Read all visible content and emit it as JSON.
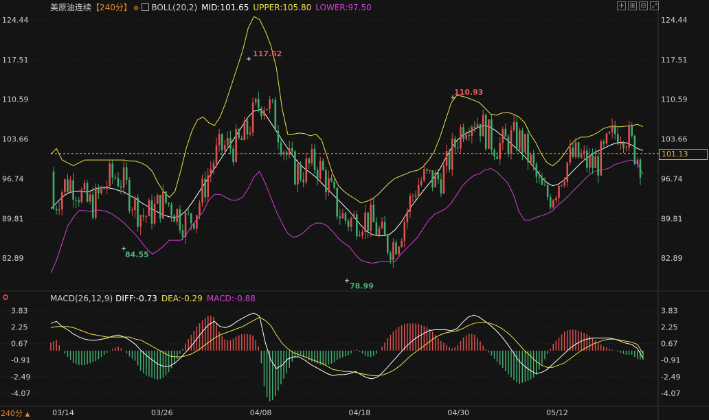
{
  "header": {
    "instrument": "美原油连续",
    "period": "【240分】",
    "boll_label": "BOLL(20,2)",
    "mid": "MID:101.65",
    "upper": "UPPER:105.80",
    "lower": "LOWER:97.50"
  },
  "macd_header": {
    "label": "MACD(26,12,9)",
    "diff": "DIFF:-0.73",
    "dea": "DEA:-0.29",
    "macd": "MACD:-0.88"
  },
  "colors": {
    "background": "#141414",
    "up": "#e0504f",
    "down": "#3fae6e",
    "mid": "#ffffff",
    "upper": "#f0e24a",
    "lower": "#d341d3",
    "last_price_line": "#d9a441",
    "axis_text": "#cfcfcf",
    "high_label": "#e05a5a",
    "low_label": "#4fb07a"
  },
  "last_price": "101.13",
  "period_selector": "240分",
  "toolbar_icons": [
    "crosshair-icon",
    "zoom-in-icon",
    "zoom-out-icon",
    "restore-icon"
  ],
  "chart_data": [
    {
      "type": "candlestick",
      "x_ticks": [
        "03/14",
        "03/26",
        "04/08",
        "04/18",
        "04/30",
        "05/12"
      ],
      "y_ticks": [
        "124.44",
        "117.51",
        "110.59",
        "103.66",
        "96.74",
        "89.81",
        "82.89"
      ],
      "ylim": [
        78.6,
        125.5
      ],
      "series": [
        {
          "name": "MID",
          "values": [
            91.5,
            92.5,
            93.5,
            94.2,
            94.5,
            94.6,
            94.4,
            94.6,
            95.0,
            95.2,
            95.2,
            95.0,
            94.7,
            94.4,
            93.8,
            93.3,
            92.6,
            92.0,
            91.4,
            90.9,
            90.4,
            90.1,
            90.0,
            90.3,
            91.2,
            92.5,
            94.0,
            95.5,
            97.0,
            98.5,
            100.0,
            101.5,
            103.0,
            104.5,
            106.0,
            107.5,
            108.5,
            108.8,
            108.0,
            106.5,
            105.0,
            103.5,
            102.0,
            100.6,
            99.4,
            98.5,
            97.8,
            97.0,
            96.0,
            95.0,
            94.0,
            93.0,
            92.0,
            91.0,
            89.8,
            88.6,
            87.6,
            87.0,
            86.8,
            86.8,
            87.0,
            87.8,
            89.0,
            90.5,
            92.0,
            93.3,
            94.6,
            95.8,
            97.0,
            98.5,
            100.3,
            102.0,
            103.4,
            104.3,
            104.8,
            105.3,
            105.8,
            106.0,
            105.7,
            105.0,
            104.2,
            103.4,
            102.5,
            101.6,
            100.6,
            99.5,
            98.3,
            97.0,
            96.0,
            95.5,
            95.8,
            96.5,
            97.5,
            98.5,
            99.5,
            100.3,
            101.0,
            101.6,
            102.0,
            102.5,
            102.9,
            103.1,
            103.0,
            102.6,
            102.0,
            101.65
          ]
        },
        {
          "name": "UPPER",
          "values": [
            101,
            102,
            100,
            99.5,
            99,
            99.5,
            100,
            100,
            100,
            100,
            100,
            100,
            100,
            100,
            99.8,
            99.8,
            99.5,
            99.0,
            98.0,
            96.0,
            94.5,
            93.5,
            94.5,
            98,
            102,
            105,
            107,
            107.5,
            106.5,
            106,
            107.5,
            110,
            113,
            116,
            119,
            123,
            125,
            124.5,
            122.5,
            120,
            116,
            109,
            104.5,
            104.5,
            104.7,
            104.6,
            104.2,
            104.5,
            103.5,
            100.5,
            97.5,
            95.5,
            94.5,
            93.8,
            93.2,
            92.5,
            92.8,
            93.2,
            94.0,
            95.0,
            96.0,
            96.8,
            97.2,
            97.6,
            98.0,
            98.2,
            98.8,
            100.0,
            101.5,
            104.0,
            107.0,
            110.0,
            111.3,
            111.1,
            110.8,
            110.4,
            110.0,
            109.0,
            108.0,
            107.8,
            108.2,
            108.3,
            108.0,
            107.5,
            106.5,
            104.5,
            103.0,
            101.0,
            99.5,
            99.0,
            99.8,
            101.0,
            102.5,
            103.5,
            104.0,
            104.0,
            104.3,
            104.8,
            105.5,
            105.8,
            105.8,
            105.8,
            105.9,
            106.0,
            106.2,
            105.8
          ]
        },
        {
          "name": "LOWER",
          "values": [
            80.3,
            82.5,
            85.5,
            88.5,
            90.0,
            91.2,
            91.2,
            91.0,
            91.3,
            91.2,
            91.0,
            90.5,
            89.8,
            89.0,
            88.0,
            87.0,
            85.8,
            84.5,
            83.6,
            84.2,
            85.0,
            86.0,
            86.0,
            86.0,
            87.0,
            88.5,
            89.8,
            91.0,
            93.0,
            94.0,
            94.0,
            93.5,
            93.0,
            93.0,
            93.5,
            95.0,
            97.0,
            98.0,
            96.0,
            93.5,
            91.0,
            89.0,
            87.2,
            86.5,
            86.8,
            87.5,
            88.5,
            89.0,
            89.0,
            88.5,
            87.5,
            86.3,
            85.5,
            84.8,
            83.5,
            82.5,
            82.2,
            82.0,
            82.2,
            82.3,
            82.3,
            82.3,
            83.5,
            84.5,
            85.5,
            86.5,
            88.0,
            89.5,
            90.5,
            91.0,
            91.5,
            92.5,
            94.0,
            95.5,
            96.5,
            97.3,
            97.6,
            98.3,
            98.5,
            98.0,
            97.0,
            96.0,
            94.0,
            91.0,
            89.5,
            89.5,
            90.0,
            90.3,
            90.6,
            91.2,
            92.2,
            93.0,
            94.0,
            95.0,
            96.0,
            97.0,
            97.8,
            98.2,
            98.3,
            98.6,
            99.2,
            99.5,
            99.8,
            100.0,
            99.5,
            97.5
          ]
        }
      ],
      "annotations": [
        {
          "text": "117.62",
          "type": "high"
        },
        {
          "text": "84.55",
          "type": "low"
        },
        {
          "text": "78.99",
          "type": "low"
        },
        {
          "text": "110.93",
          "type": "high"
        }
      ]
    },
    {
      "type": "bar",
      "title": "MACD(26,12,9)",
      "y_ticks": [
        "3.83",
        "2.25",
        "0.67",
        "-0.91",
        "-2.49",
        "-4.07"
      ],
      "ylim": [
        -5.2,
        4.2
      ],
      "series": [
        {
          "name": "DIFF",
          "values": [
            2.6,
            2.8,
            2.3,
            2.0,
            1.6,
            1.3,
            1.1,
            1.0,
            1.0,
            1.1,
            1.2,
            1.4,
            1.5,
            1.3,
            1.0,
            0.6,
            0.0,
            -0.5,
            -0.9,
            -1.3,
            -1.5,
            -1.5,
            -1.2,
            -0.7,
            -0.1,
            0.5,
            1.2,
            1.9,
            2.5,
            2.8,
            2.3,
            2.2,
            2.4,
            2.8,
            3.1,
            3.4,
            3.6,
            3.3,
            0.8,
            -0.9,
            -1.7,
            -1.4,
            -0.8,
            -0.6,
            -0.6,
            -0.9,
            -1.3,
            -1.6,
            -1.9,
            -2.2,
            -2.4,
            -2.3,
            -2.3,
            -2.2,
            -2.0,
            -2.3,
            -2.6,
            -2.7,
            -2.5,
            -2.0,
            -1.4,
            -0.8,
            -0.2,
            0.4,
            0.9,
            1.3,
            1.6,
            1.9,
            2.0,
            2.0,
            2.0,
            1.9,
            2.1,
            2.7,
            3.2,
            3.4,
            3.2,
            2.8,
            2.4,
            1.9,
            1.3,
            0.6,
            -0.2,
            -1.0,
            -1.5,
            -1.9,
            -2.2,
            -2.1,
            -1.8,
            -1.3,
            -0.8,
            -0.3,
            0.2,
            0.6,
            0.9,
            1.1,
            1.2,
            1.2,
            1.2,
            1.2,
            1.1,
            0.9,
            0.7,
            0.6,
            0.2,
            -0.73
          ]
        },
        {
          "name": "DEA",
          "values": [
            2.2,
            2.3,
            2.3,
            2.3,
            2.2,
            2.0,
            1.8,
            1.6,
            1.5,
            1.4,
            1.3,
            1.3,
            1.3,
            1.3,
            1.3,
            1.1,
            1.0,
            0.7,
            0.4,
            0.1,
            -0.2,
            -0.5,
            -0.6,
            -0.6,
            -0.5,
            -0.3,
            0.0,
            0.4,
            0.8,
            1.2,
            1.5,
            1.7,
            1.9,
            2.1,
            2.3,
            2.6,
            2.9,
            3.2,
            2.9,
            2.4,
            1.5,
            0.7,
            0.2,
            -0.2,
            -0.4,
            -0.6,
            -0.8,
            -1.0,
            -1.2,
            -1.5,
            -1.8,
            -1.9,
            -2.0,
            -2.0,
            -2.1,
            -2.2,
            -2.3,
            -2.4,
            -2.4,
            -2.3,
            -2.1,
            -1.8,
            -1.4,
            -0.9,
            -0.4,
            0.0,
            0.4,
            0.8,
            1.2,
            1.5,
            1.7,
            1.8,
            1.9,
            2.1,
            2.4,
            2.6,
            2.7,
            2.7,
            2.6,
            2.4,
            2.1,
            1.7,
            1.2,
            0.6,
            0.0,
            -0.5,
            -1.0,
            -1.4,
            -1.6,
            -1.6,
            -1.4,
            -1.2,
            -0.8,
            -0.4,
            0.0,
            0.3,
            0.6,
            0.8,
            1.0,
            1.1,
            1.1,
            1.0,
            0.9,
            0.8,
            0.6,
            -0.29
          ]
        },
        {
          "name": "MACD",
          "values": [
            0.8,
            1.0,
            0.0,
            -0.6,
            -1.2,
            -1.4,
            -1.4,
            -1.2,
            -1.0,
            -0.6,
            -0.2,
            0.2,
            0.4,
            0.0,
            -0.6,
            -1.0,
            -2.0,
            -2.4,
            -2.6,
            -2.8,
            -2.6,
            -2.0,
            -1.2,
            -0.2,
            0.8,
            1.6,
            2.4,
            3.0,
            3.4,
            3.2,
            1.6,
            1.0,
            1.0,
            1.4,
            1.6,
            1.6,
            1.4,
            0.2,
            -4.2,
            -5.0,
            -4.2,
            -3.0,
            -2.0,
            -0.8,
            -0.4,
            -0.6,
            -1.0,
            -1.2,
            -1.4,
            -1.4,
            -1.2,
            -0.8,
            -0.6,
            -0.4,
            0.2,
            -0.2,
            -0.6,
            -0.6,
            -0.2,
            0.6,
            1.4,
            2.0,
            2.4,
            2.6,
            2.6,
            2.6,
            2.4,
            2.2,
            1.6,
            1.0,
            0.6,
            0.2,
            0.4,
            1.2,
            1.6,
            1.6,
            1.0,
            0.2,
            -0.4,
            -1.0,
            -1.6,
            -2.2,
            -2.8,
            -3.2,
            -3.0,
            -2.8,
            -2.4,
            -1.4,
            -0.4,
            0.6,
            1.2,
            1.8,
            2.0,
            2.0,
            1.8,
            1.6,
            1.2,
            0.8,
            0.4,
            0.2,
            0.0,
            -0.2,
            -0.4,
            -0.4,
            -0.8,
            -0.88
          ]
        }
      ]
    }
  ]
}
